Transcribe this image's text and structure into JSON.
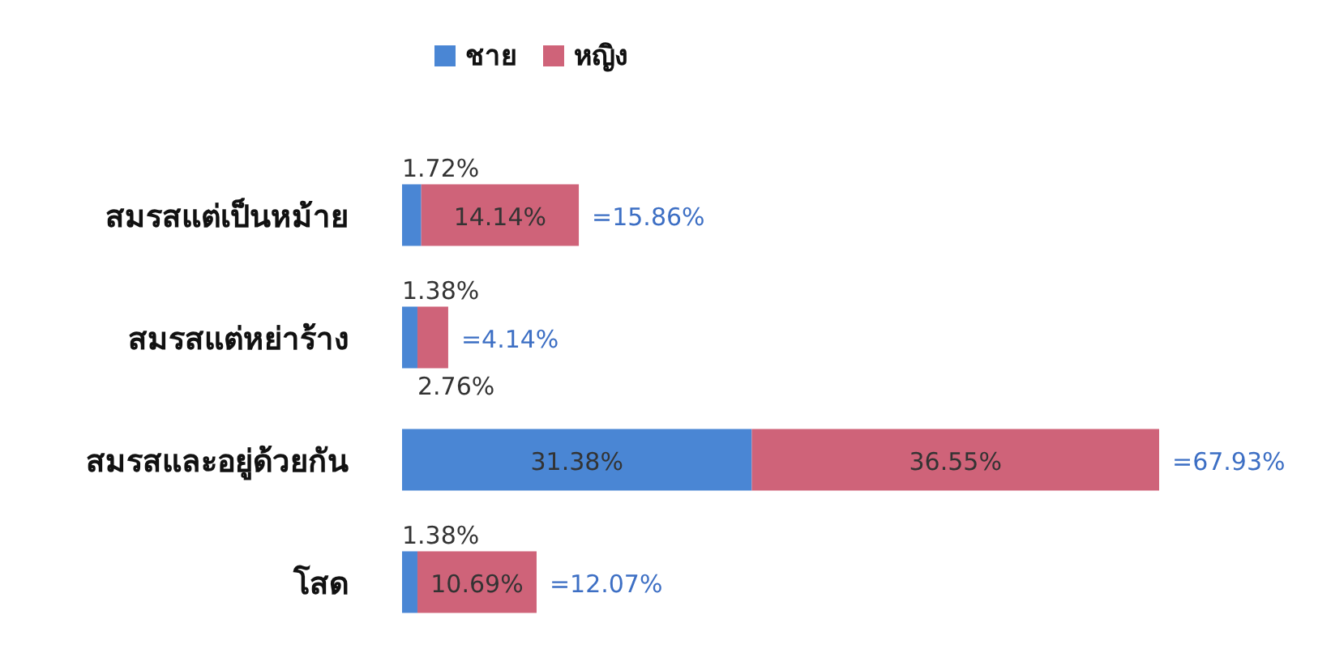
{
  "chart_data": {
    "type": "bar",
    "orientation": "horizontal",
    "stacked": true,
    "legend": "top",
    "categories": [
      "สมรสแต่เป็นหม้าย",
      "สมรสแต่หย่าร้าง",
      "สมรสและอยู่ด้วยกัน",
      "โสด"
    ],
    "series": [
      {
        "name": "ชาย",
        "color": "#4a86d4",
        "values": [
          1.72,
          1.38,
          31.38,
          1.38
        ],
        "value_labels": [
          "1.72%",
          "1.38%",
          "31.38%",
          "1.38%"
        ]
      },
      {
        "name": "หญิง",
        "color": "#cf6379",
        "values": [
          14.14,
          2.76,
          36.55,
          10.69
        ],
        "value_labels": [
          "14.14%",
          "2.76%",
          "36.55%",
          "10.69%"
        ]
      }
    ],
    "totals": [
      "=15.86%",
      "=4.14%",
      "=67.93%",
      "=12.07%"
    ]
  }
}
